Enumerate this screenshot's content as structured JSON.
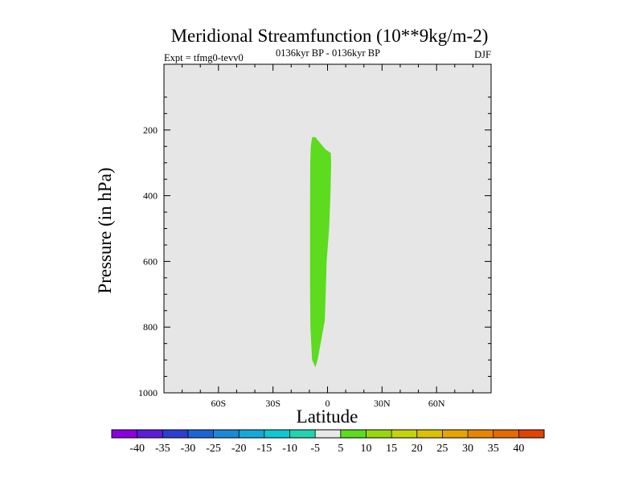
{
  "chart_data": {
    "type": "contour",
    "title": "Meridional Streamfunction (10**9kg/m-2)",
    "left_label": "Expt = tfmg0-tevv0",
    "center_label": "0136kyr BP - 0136kyr BP",
    "right_label": "DJF",
    "xlabel": "Latitude",
    "ylabel": "Pressure (in hPa)",
    "xlim": [
      -90,
      90
    ],
    "ylim": [
      1000,
      0
    ],
    "y_reversed": true,
    "x_ticks": [
      {
        "value": -60,
        "label": "60S"
      },
      {
        "value": -30,
        "label": "30S"
      },
      {
        "value": 0,
        "label": "0"
      },
      {
        "value": 30,
        "label": "30N"
      },
      {
        "value": 60,
        "label": "60N"
      }
    ],
    "y_ticks": [
      {
        "value": 200,
        "label": "200"
      },
      {
        "value": 400,
        "label": "400"
      },
      {
        "value": 600,
        "label": "600"
      },
      {
        "value": 800,
        "label": "800"
      },
      {
        "value": 1000,
        "label": "1000"
      }
    ],
    "plot_background": "#e6e6e6",
    "contour_regions": [
      {
        "level_range": [
          5,
          10
        ],
        "color": "#5ddb1e",
        "polygon": [
          [
            -8.5,
            222
          ],
          [
            -6.7,
            222
          ],
          [
            -4.0,
            240
          ],
          [
            -1.0,
            260
          ],
          [
            1.8,
            270
          ],
          [
            2.0,
            300
          ],
          [
            1.6,
            400
          ],
          [
            0.9,
            500
          ],
          [
            -0.5,
            600
          ],
          [
            -1.0,
            700
          ],
          [
            -1.5,
            780
          ],
          [
            -3.5,
            840
          ],
          [
            -5.5,
            900
          ],
          [
            -6.7,
            922
          ],
          [
            -8.5,
            900
          ],
          [
            -9.4,
            800
          ],
          [
            -9.6,
            700
          ],
          [
            -9.6,
            600
          ],
          [
            -9.6,
            500
          ],
          [
            -9.6,
            400
          ],
          [
            -9.5,
            300
          ],
          [
            -9.2,
            250
          ]
        ]
      }
    ],
    "colorbar": {
      "labels": [
        "-40",
        "-35",
        "-30",
        "-25",
        "-20",
        "-15",
        "-10",
        "-5",
        "5",
        "10",
        "15",
        "20",
        "25",
        "30",
        "35",
        "40"
      ],
      "colors": [
        "#8a00e0",
        "#5d1dd8",
        "#2c3fd1",
        "#1a65d6",
        "#1a8ad8",
        "#14a9d6",
        "#10c6d0",
        "#22d3b0",
        "#e8e8e8",
        "#5ddb1e",
        "#98d80e",
        "#c4d40c",
        "#dcc006",
        "#e5a400",
        "#e68600",
        "#e56a00",
        "#e04400"
      ]
    }
  }
}
